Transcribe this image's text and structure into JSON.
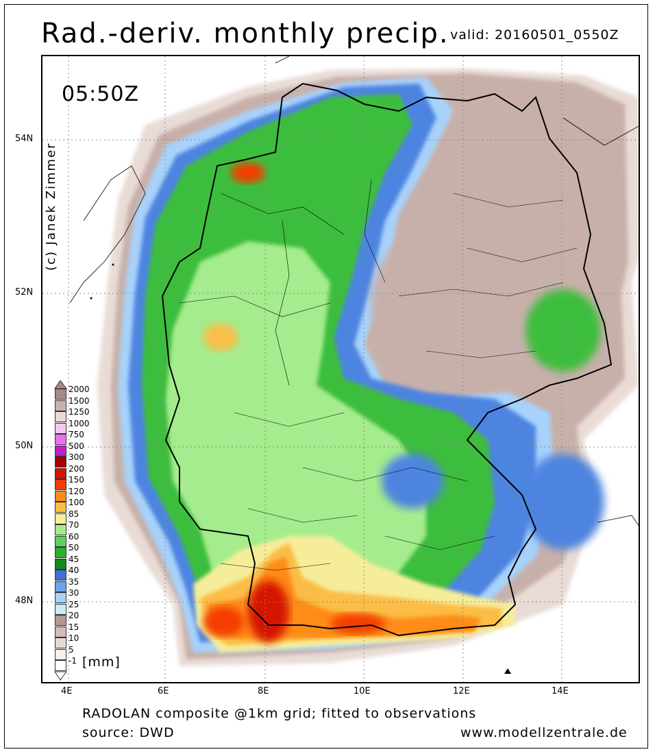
{
  "title": "Rad.-deriv. monthly precip.",
  "valid_label": "valid: 20160501_0550Z",
  "time_label": "05:50Z",
  "copyright": "(c) Janek Zimmer",
  "lat_labels": [
    "54N",
    "52N",
    "50N",
    "48N"
  ],
  "lon_labels": [
    "4E",
    "6E",
    "8E",
    "10E",
    "12E",
    "14E"
  ],
  "legend": {
    "unit": "[mm]",
    "levels": [
      {
        "label": "2000",
        "color": "#a58a83"
      },
      {
        "label": "1500",
        "color": "#c9b2ad"
      },
      {
        "label": "1250",
        "color": "#eadbd8"
      },
      {
        "label": "1000",
        "color": "#f7c8f5"
      },
      {
        "label": "750",
        "color": "#ee70ee"
      },
      {
        "label": "500",
        "color": "#c21fc2"
      },
      {
        "label": "300",
        "color": "#a80000"
      },
      {
        "label": "200",
        "color": "#d41400"
      },
      {
        "label": "150",
        "color": "#f43c00"
      },
      {
        "label": "120",
        "color": "#ff8c19"
      },
      {
        "label": "100",
        "color": "#fbbd46"
      },
      {
        "label": "85",
        "color": "#f6ed9a"
      },
      {
        "label": "70",
        "color": "#a4ec8d"
      },
      {
        "label": "60",
        "color": "#5ed35a"
      },
      {
        "label": "50",
        "color": "#28b22a"
      },
      {
        "label": "45",
        "color": "#0f8a1e"
      },
      {
        "label": "40",
        "color": "#3c70d8"
      },
      {
        "label": "35",
        "color": "#6ba3ef"
      },
      {
        "label": "30",
        "color": "#a7d2fa"
      },
      {
        "label": "25",
        "color": "#c9ecf7"
      },
      {
        "label": "20",
        "color": "#b39893"
      },
      {
        "label": "15",
        "color": "#d4bcb6"
      },
      {
        "label": "10",
        "color": "#e8d8d2"
      },
      {
        "label": "5",
        "color": "#f8f0ed"
      },
      {
        "label": "-1",
        "color": "#ffffff"
      }
    ]
  },
  "footer": {
    "line1": "RADOLAN composite @1km grid; fitted to observations",
    "line2": "source: DWD",
    "website": "www.modellzentrale.de"
  }
}
